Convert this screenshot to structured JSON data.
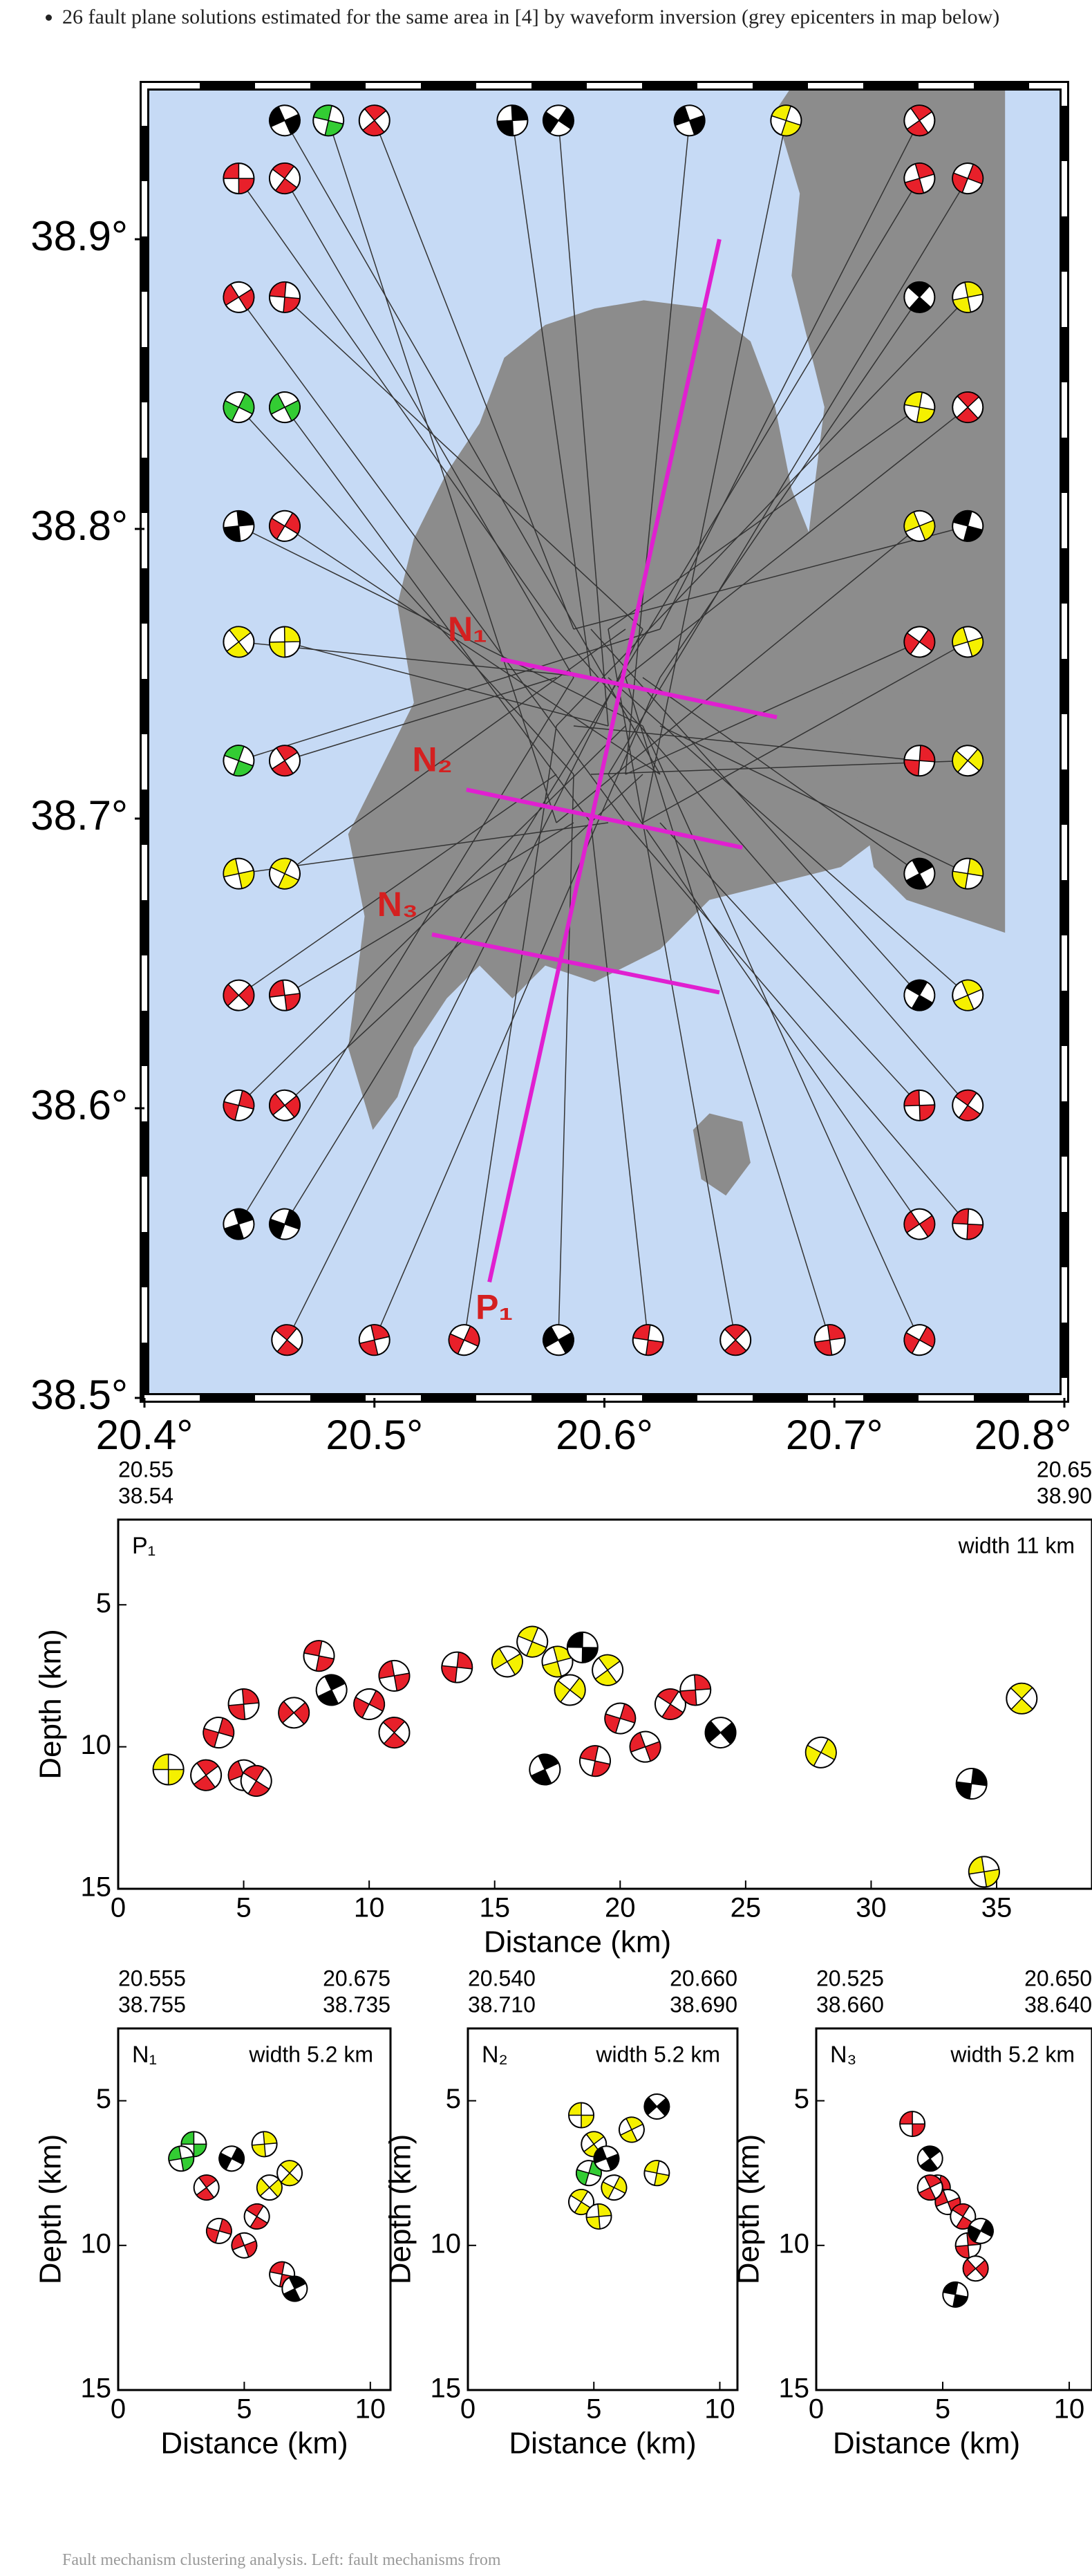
{
  "text": {
    "bullet": "26 fault plane solutions estimated for the same area in [4] by waveform inversion (grey epicenters in map below)",
    "caption": "Fault mechanism clustering analysis. Left: fault mechanisms from"
  },
  "chart_data": [
    {
      "type": "map",
      "xlim": [
        20.4,
        20.8
      ],
      "ylim": [
        38.5,
        38.953
      ],
      "xticks": [
        {
          "value": 20.4,
          "label": "20.4°"
        },
        {
          "value": 20.5,
          "label": "20.5°"
        },
        {
          "value": 20.6,
          "label": "20.6°"
        },
        {
          "value": 20.7,
          "label": "20.7°"
        },
        {
          "value": 20.8,
          "label": "20.8°"
        }
      ],
      "yticks": [
        {
          "value": 38.5,
          "label": "38.5°"
        },
        {
          "value": 38.6,
          "label": "38.6°"
        },
        {
          "value": 38.7,
          "label": "38.7°"
        },
        {
          "value": 38.8,
          "label": "38.8°"
        },
        {
          "value": 38.9,
          "label": "38.9°"
        }
      ],
      "profile_color": "#e020d0",
      "label_color": "#d42020",
      "mechanisms": {
        "lon": [
          20.441,
          20.461,
          20.737,
          20.758,
          20.441,
          20.461,
          20.737,
          20.758,
          20.441,
          20.461,
          20.737,
          20.758,
          20.441,
          20.461,
          20.737,
          20.758,
          20.441,
          20.461,
          20.737,
          20.758,
          20.441,
          20.461,
          20.737,
          20.758,
          20.441,
          20.461,
          20.737,
          20.758,
          20.441,
          20.461,
          20.737,
          20.758,
          20.441,
          20.461,
          20.737,
          20.758,
          20.441,
          20.461,
          20.737,
          20.758,
          20.462,
          20.5,
          20.539,
          20.58,
          20.619,
          20.657,
          20.698,
          20.737,
          20.461,
          20.48,
          20.5,
          20.56,
          20.58,
          20.637,
          20.679,
          20.737
        ],
        "lat": [
          38.921,
          38.921,
          38.921,
          38.921,
          38.88,
          38.88,
          38.88,
          38.88,
          38.842,
          38.842,
          38.842,
          38.842,
          38.801,
          38.801,
          38.801,
          38.801,
          38.761,
          38.761,
          38.761,
          38.761,
          38.72,
          38.72,
          38.72,
          38.72,
          38.681,
          38.681,
          38.681,
          38.681,
          38.639,
          38.639,
          38.639,
          38.639,
          38.601,
          38.601,
          38.601,
          38.601,
          38.56,
          38.56,
          38.56,
          38.56,
          38.52,
          38.52,
          38.52,
          38.52,
          38.52,
          38.52,
          38.52,
          38.52,
          38.941,
          38.941,
          38.941,
          38.941,
          38.941,
          38.941,
          38.941,
          38.941
        ],
        "color": [
          "#e8202a",
          "#e8202a",
          "#e8202a",
          "#e8202a",
          "#e8202a",
          "#e8202a",
          "#000000",
          "#f5f000",
          "#33cc33",
          "#33cc33",
          "#f5f000",
          "#e8202a",
          "#000000",
          "#e8202a",
          "#f5f000",
          "#000000",
          "#f5f000",
          "#f5f000",
          "#e8202a",
          "#f5f000",
          "#33cc33",
          "#e8202a",
          "#e8202a",
          "#f5f000",
          "#f5f000",
          "#f5f000",
          "#000000",
          "#f5f000",
          "#e8202a",
          "#e8202a",
          "#000000",
          "#f5f000",
          "#e8202a",
          "#e8202a",
          "#e8202a",
          "#e8202a",
          "#000000",
          "#000000",
          "#e8202a",
          "#e8202a",
          "#e8202a",
          "#e8202a",
          "#e8202a",
          "#000000",
          "#e8202a",
          "#e8202a",
          "#e8202a",
          "#e8202a",
          "#000000",
          "#33cc33",
          "#e8202a",
          "#000000",
          "#000000",
          "#000000",
          "#f5f000",
          "#e8202a"
        ]
      }
    },
    {
      "type": "section",
      "label": "P₁",
      "width_label": "width 11 km",
      "start": {
        "lon": 20.55,
        "lat": 38.54
      },
      "end": {
        "lon": 20.65,
        "lat": {
          "value": 38.9,
          "label": "38.90"
        }
      },
      "xlabel": "Distance (km)",
      "ylabel": "Depth (km)",
      "xlim": [
        0,
        38.8
      ],
      "ylim": [
        2,
        15
      ],
      "xticks": [
        0,
        5,
        10,
        15,
        20,
        25,
        30,
        35
      ],
      "yticks": [
        5,
        10,
        15
      ],
      "mechanisms": {
        "x": [
          2,
          3.5,
          4,
          5,
          5.5,
          5,
          7,
          8,
          8.5,
          10,
          11,
          11,
          13.5,
          15.5,
          16.5,
          17.5,
          18,
          18.5,
          19.5,
          20,
          21,
          22,
          23,
          24,
          19,
          17,
          28,
          34.5,
          36,
          34
        ],
        "y": [
          10.8,
          11,
          9.5,
          11,
          11.2,
          8.5,
          8.8,
          6.8,
          8,
          8.5,
          7.5,
          9.5,
          7.2,
          7,
          6.3,
          7,
          8,
          6.5,
          7.3,
          9,
          10,
          8.5,
          8,
          9.5,
          10.5,
          10.8,
          10.2,
          14.4,
          8.3,
          11.3
        ],
        "color": [
          "#f5f000",
          "#e8202a",
          "#e8202a",
          "#e8202a",
          "#e8202a",
          "#e8202a",
          "#e8202a",
          "#e8202a",
          "#000000",
          "#e8202a",
          "#e8202a",
          "#e8202a",
          "#e8202a",
          "#f5f000",
          "#f5f000",
          "#f5f000",
          "#f5f000",
          "#000000",
          "#f5f000",
          "#e8202a",
          "#e8202a",
          "#e8202a",
          "#e8202a",
          "#000000",
          "#e8202a",
          "#000000",
          "#f5f000",
          "#f5f000",
          "#f5f000",
          "#000000"
        ]
      }
    },
    {
      "type": "section",
      "label": "N₁",
      "width_label": "width 5.2 km",
      "start": {
        "lon": 20.555,
        "lat": 38.755
      },
      "end": {
        "lon": 20.675,
        "lat": 38.735
      },
      "xlabel": "Distance (km)",
      "ylabel": "Depth (km)",
      "xlim": [
        0,
        10.8
      ],
      "ylim": [
        2.5,
        15
      ],
      "xticks": [
        0,
        5,
        10
      ],
      "yticks": [
        5,
        10,
        15
      ],
      "mechanisms": {
        "x": [
          3,
          3.5,
          4,
          5,
          5.5,
          5.8,
          6,
          6.5,
          7,
          4.5,
          2.5,
          6.8
        ],
        "y": [
          6.5,
          8,
          9.5,
          10,
          9,
          6.5,
          8,
          11,
          11.5,
          7,
          7,
          7.5
        ],
        "color": [
          "#33cc33",
          "#e8202a",
          "#e8202a",
          "#e8202a",
          "#e8202a",
          "#f5f000",
          "#f5f000",
          "#e8202a",
          "#000000",
          "#000000",
          "#33cc33",
          "#f5f000"
        ]
      }
    },
    {
      "type": "section",
      "label": "N₂",
      "width_label": "width 5.2 km",
      "start": {
        "lon": {
          "value": 20.54,
          "label": "20.540"
        },
        "lat": {
          "value": 38.71,
          "label": "38.710"
        }
      },
      "end": {
        "lon": {
          "value": 20.66,
          "label": "20.660"
        },
        "lat": {
          "value": 38.69,
          "label": "38.690"
        }
      },
      "xlabel": "Distance (km)",
      "ylabel": "Depth (km)",
      "xlim": [
        0,
        10.7
      ],
      "ylim": [
        2.5,
        15
      ],
      "xticks": [
        0,
        5,
        10
      ],
      "yticks": [
        5,
        10,
        15
      ],
      "mechanisms": {
        "x": [
          4.5,
          5,
          4.8,
          5.5,
          4.5,
          5.2,
          7.5,
          7.5,
          6.5,
          5.8
        ],
        "y": [
          5.5,
          6.5,
          7.5,
          7,
          8.5,
          9,
          5.2,
          7.5,
          6,
          8
        ],
        "color": [
          "#f5f000",
          "#f5f000",
          "#33cc33",
          "#000000",
          "#f5f000",
          "#f5f000",
          "#000000",
          "#f5f000",
          "#f5f000",
          "#f5f000"
        ]
      }
    },
    {
      "type": "section",
      "label": "N₃",
      "width_label": "width 5.2 km",
      "start": {
        "lon": 20.525,
        "lat": {
          "value": 38.66,
          "label": "38.660"
        }
      },
      "end": {
        "lon": {
          "value": 20.65,
          "label": "20.650"
        },
        "lat": {
          "value": 38.64,
          "label": "38.640"
        }
      },
      "xlabel": "Distance (km)",
      "ylabel": "Depth (km)",
      "xlim": [
        0,
        10.9
      ],
      "ylim": [
        2.5,
        15
      ],
      "xticks": [
        0,
        5,
        10
      ],
      "yticks": [
        5,
        10,
        15
      ],
      "mechanisms": {
        "x": [
          3.8,
          4.5,
          4.8,
          5.2,
          5.8,
          6,
          6.3,
          5.5,
          4.5,
          6.5
        ],
        "y": [
          5.8,
          7,
          8,
          8.5,
          9,
          10,
          10.8,
          11.7,
          8,
          9.5
        ],
        "color": [
          "#e8202a",
          "#000000",
          "#e8202a",
          "#e8202a",
          "#e8202a",
          "#e8202a",
          "#e8202a",
          "#000000",
          "#e8202a",
          "#000000"
        ]
      }
    }
  ]
}
